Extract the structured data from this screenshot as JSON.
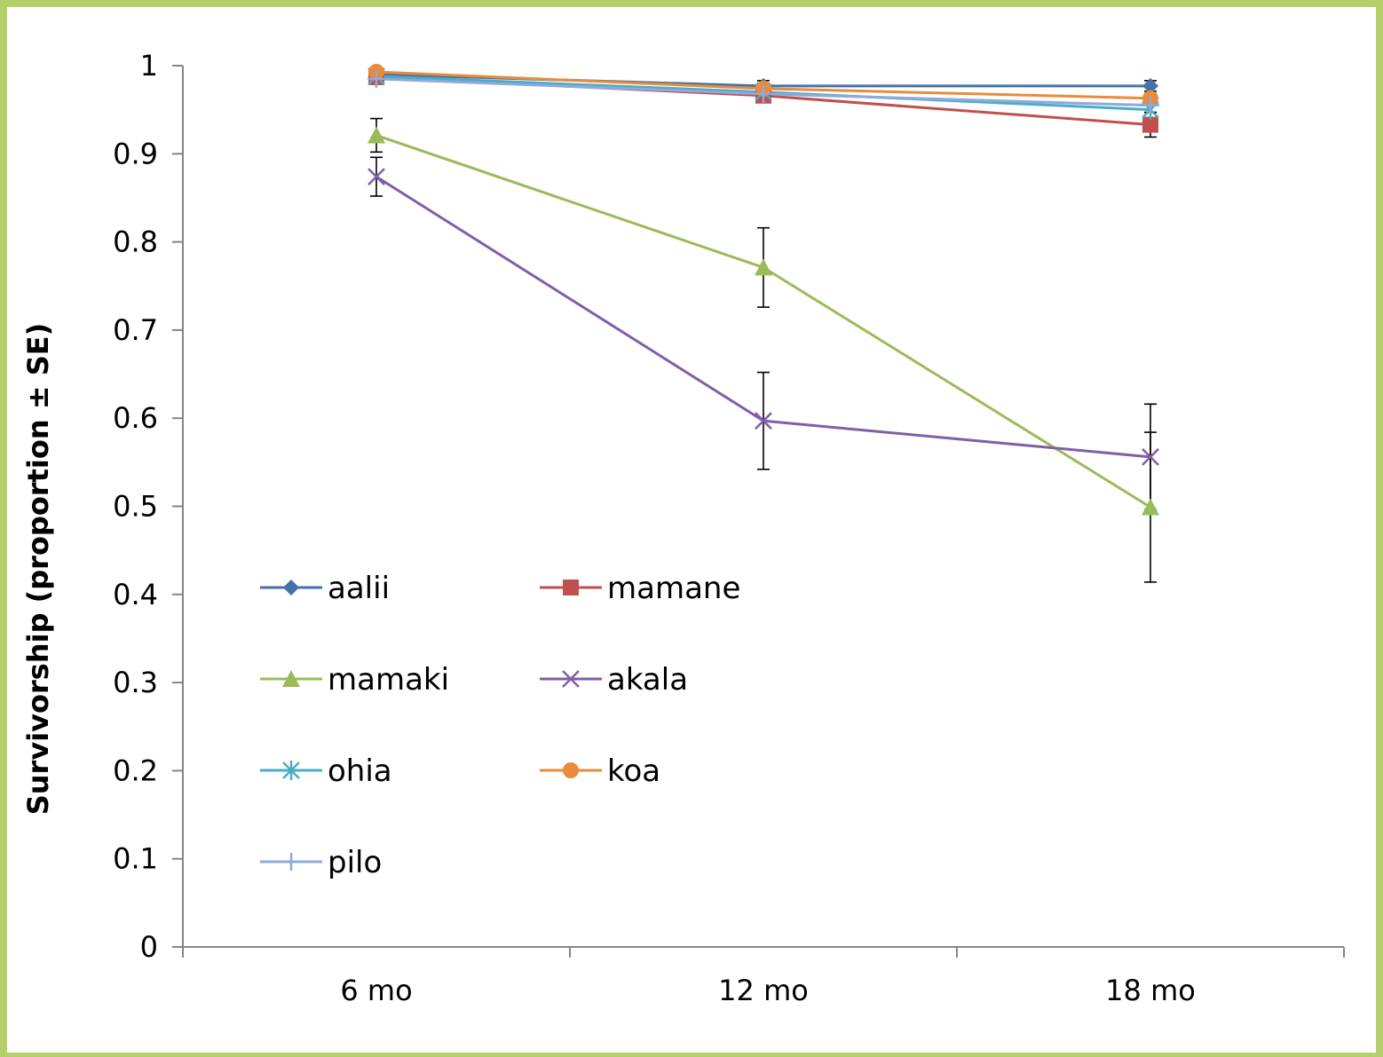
{
  "chart_data": {
    "type": "line",
    "title": "",
    "xlabel": "",
    "ylabel": "Survivorship (proportion ± SE)",
    "categories": [
      "6 mo",
      "12 mo",
      "18 mo"
    ],
    "ylim": [
      0,
      1
    ],
    "yticks": [
      "0",
      "0.1",
      "0.2",
      "0.3",
      "0.4",
      "0.5",
      "0.6",
      "0.7",
      "0.8",
      "0.9",
      "1"
    ],
    "grid": false,
    "legend_position": "bottom-left",
    "series": [
      {
        "name": "aalii",
        "color": "#4472a8",
        "marker": "diamond",
        "values": [
          0.99,
          0.977,
          0.977
        ],
        "se": [
          0.003,
          0.006,
          0.006
        ]
      },
      {
        "name": "mamane",
        "color": "#c0504d",
        "marker": "square",
        "values": [
          0.987,
          0.966,
          0.933
        ],
        "se": [
          0.003,
          0.006,
          0.014
        ]
      },
      {
        "name": "mamaki",
        "color": "#9bbb59",
        "marker": "triangle",
        "values": [
          0.921,
          0.771,
          0.499
        ],
        "se": [
          0.019,
          0.045,
          0.085
        ]
      },
      {
        "name": "akala",
        "color": "#7f5fa8",
        "marker": "x",
        "values": [
          0.874,
          0.597,
          0.556
        ],
        "se": [
          0.022,
          0.055,
          0.06
        ]
      },
      {
        "name": "ohia",
        "color": "#4bacc6",
        "marker": "asterisk",
        "values": [
          0.988,
          0.97,
          0.95
        ],
        "se": [
          0.003,
          0.006,
          0.01
        ]
      },
      {
        "name": "koa",
        "color": "#e88c3c",
        "marker": "circle",
        "values": [
          0.993,
          0.974,
          0.963
        ],
        "se": [
          0.003,
          0.006,
          0.008
        ]
      },
      {
        "name": "pilo",
        "color": "#8ea9db",
        "marker": "plus",
        "values": [
          0.985,
          0.968,
          0.955
        ],
        "se": [
          0.003,
          0.006,
          0.008
        ]
      }
    ]
  }
}
